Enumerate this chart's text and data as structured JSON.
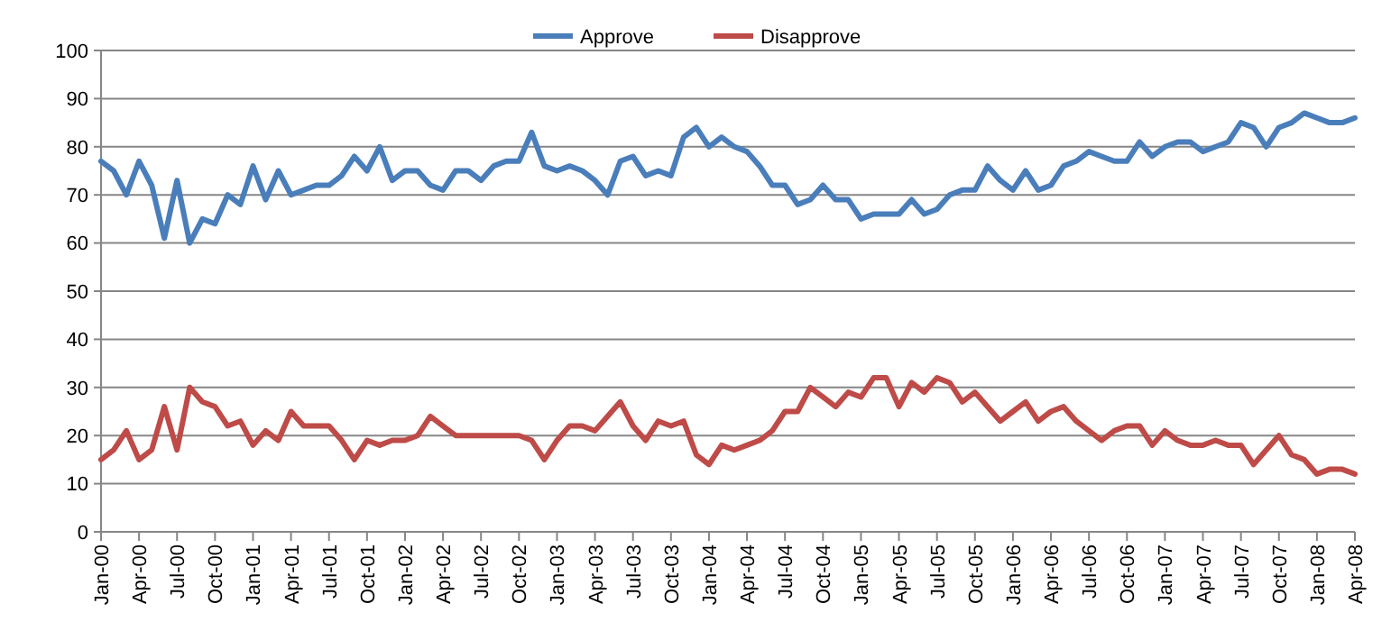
{
  "chart_data": {
    "type": "line",
    "categories": [
      "Jan-00",
      null,
      null,
      "Apr-00",
      null,
      null,
      "Jul-00",
      null,
      null,
      "Oct-00",
      null,
      null,
      "Jan-01",
      null,
      null,
      "Apr-01",
      null,
      null,
      "Jul-01",
      null,
      null,
      "Oct-01",
      null,
      null,
      "Jan-02",
      null,
      null,
      "Apr-02",
      null,
      null,
      "Jul-02",
      null,
      null,
      "Oct-02",
      null,
      null,
      "Jan-03",
      null,
      null,
      "Apr-03",
      null,
      null,
      "Jul-03",
      null,
      null,
      "Oct-03",
      null,
      null,
      "Jan-04",
      null,
      null,
      "Apr-04",
      null,
      null,
      "Jul-04",
      null,
      null,
      "Oct-04",
      null,
      null,
      "Jan-05",
      null,
      null,
      "Apr-05",
      null,
      null,
      "Jul-05",
      null,
      null,
      "Oct-05",
      null,
      null,
      "Jan-06",
      null,
      null,
      "Apr-06",
      null,
      null,
      "Jul-06",
      null,
      null,
      "Oct-06",
      null,
      null,
      "Jan-07",
      null,
      null,
      "Apr-07",
      null,
      null,
      "Jul-07",
      null,
      null,
      "Oct-07",
      null,
      null,
      "Jan-08",
      null,
      null,
      "Apr-08"
    ],
    "series": [
      {
        "name": "Approve",
        "color": "#4a7ebb",
        "values": [
          77,
          75,
          70,
          77,
          72,
          61,
          73,
          60,
          65,
          64,
          70,
          68,
          76,
          69,
          75,
          70,
          71,
          72,
          72,
          74,
          78,
          75,
          80,
          73,
          75,
          75,
          72,
          71,
          75,
          75,
          73,
          76,
          77,
          77,
          83,
          76,
          75,
          76,
          75,
          73,
          70,
          77,
          78,
          74,
          75,
          74,
          82,
          84,
          80,
          82,
          80,
          79,
          76,
          72,
          72,
          68,
          69,
          72,
          69,
          69,
          65,
          66,
          66,
          66,
          69,
          66,
          67,
          70,
          71,
          71,
          76,
          73,
          71,
          75,
          71,
          72,
          76,
          77,
          79,
          78,
          77,
          77,
          81,
          78,
          80,
          81,
          81,
          79,
          80,
          81,
          85,
          84,
          80,
          84,
          85,
          87,
          86,
          85,
          85,
          86
        ]
      },
      {
        "name": "Disapprove",
        "color": "#be4b48",
        "values": [
          15,
          17,
          21,
          15,
          17,
          26,
          17,
          30,
          27,
          26,
          22,
          23,
          18,
          21,
          19,
          25,
          22,
          22,
          22,
          19,
          15,
          19,
          18,
          19,
          19,
          20,
          24,
          22,
          20,
          20,
          20,
          20,
          20,
          20,
          19,
          15,
          19,
          22,
          22,
          21,
          24,
          27,
          22,
          19,
          23,
          22,
          23,
          16,
          14,
          18,
          17,
          18,
          19,
          21,
          25,
          25,
          30,
          28,
          26,
          29,
          28,
          32,
          32,
          26,
          31,
          29,
          32,
          31,
          27,
          29,
          26,
          23,
          25,
          27,
          23,
          25,
          26,
          23,
          21,
          19,
          21,
          22,
          22,
          18,
          21,
          19,
          18,
          18,
          19,
          18,
          18,
          14,
          17,
          20,
          16,
          15,
          12,
          13,
          13,
          12
        ]
      }
    ],
    "ylim": [
      0,
      100
    ],
    "yticks": [
      0,
      10,
      20,
      30,
      40,
      50,
      60,
      70,
      80,
      90,
      100
    ],
    "grid": "y",
    "legend": "top",
    "marker": "none",
    "line_style": "solid"
  }
}
